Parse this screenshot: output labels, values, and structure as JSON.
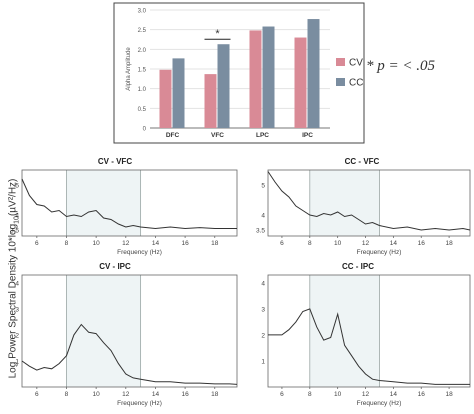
{
  "significance_note": "* p = < .05",
  "shared_ylabel": "Log Power Spectral Density 10*log10(µV²/Hz)",
  "chart_data": [
    {
      "type": "bar",
      "title": "",
      "xlabel": "",
      "ylabel": "Alpha Amplitude",
      "ylim": [
        0,
        3.0
      ],
      "yticks": [
        "0",
        "0.5",
        "1.0",
        "1.5",
        "2.0",
        "2.5",
        "3.0"
      ],
      "ytick_values": [
        0,
        0.5,
        1.0,
        1.5,
        2.0,
        2.5,
        3.0
      ],
      "grid": true,
      "legend": "right",
      "categories": [
        "DFC",
        "VFC",
        "LPC",
        "IPC"
      ],
      "series": [
        {
          "name": "CV",
          "color": "#d98a96",
          "values": [
            1.48,
            1.37,
            2.48,
            2.3
          ]
        },
        {
          "name": "CC",
          "color": "#7a8da0",
          "values": [
            1.77,
            2.13,
            2.58,
            2.77
          ]
        }
      ],
      "annotations": [
        {
          "text": "*",
          "category": "VFC"
        }
      ]
    },
    {
      "type": "line",
      "title": "CV - VFC",
      "xlabel": "Frequency (Hz)",
      "xlim": [
        5,
        19.5
      ],
      "ylim": [
        3.3,
        5.5
      ],
      "yticks": [
        "5",
        "4",
        "3.5"
      ],
      "ytick_values": [
        5,
        4,
        3.5
      ],
      "xticks": [
        6,
        8,
        10,
        12,
        14,
        16,
        18
      ],
      "shaded_band": [
        8,
        13
      ],
      "x": [
        5,
        5.5,
        6,
        6.5,
        7,
        7.5,
        8,
        8.5,
        9,
        9.5,
        10,
        10.5,
        11,
        11.5,
        12,
        12.5,
        13,
        14,
        15,
        16,
        17,
        18,
        19,
        19.5
      ],
      "y": [
        5.2,
        4.65,
        4.35,
        4.3,
        4.1,
        4.15,
        3.95,
        4.0,
        3.95,
        4.1,
        4.15,
        3.9,
        3.85,
        3.7,
        3.6,
        3.65,
        3.6,
        3.55,
        3.6,
        3.55,
        3.58,
        3.55,
        3.55,
        3.55
      ]
    },
    {
      "type": "line",
      "title": "CC - VFC",
      "xlabel": "Frequency (Hz)",
      "xlim": [
        5,
        19.5
      ],
      "ylim": [
        3.3,
        5.5
      ],
      "yticks": [
        "5",
        "4",
        "3.5"
      ],
      "ytick_values": [
        5,
        4,
        3.5
      ],
      "xticks": [
        6,
        8,
        10,
        12,
        14,
        16,
        18
      ],
      "shaded_band": [
        8,
        13
      ],
      "x": [
        5,
        5.5,
        6,
        6.5,
        7,
        7.5,
        8,
        8.5,
        9,
        9.5,
        10,
        10.5,
        11,
        11.5,
        12,
        12.5,
        13,
        14,
        15,
        16,
        17,
        18,
        19,
        19.5
      ],
      "y": [
        5.45,
        5.1,
        4.8,
        4.6,
        4.3,
        4.15,
        4.0,
        3.95,
        4.05,
        4.0,
        4.1,
        3.95,
        4.0,
        3.85,
        3.7,
        3.75,
        3.65,
        3.55,
        3.6,
        3.5,
        3.55,
        3.5,
        3.55,
        3.5
      ]
    },
    {
      "type": "line",
      "title": "CV - IPC",
      "xlabel": "Frequency (Hz)",
      "xlim": [
        5,
        19.5
      ],
      "ylim": [
        0,
        4.3
      ],
      "yticks": [
        "1",
        "2",
        "3",
        "4"
      ],
      "ytick_values": [
        1,
        2,
        3,
        4
      ],
      "xticks": [
        6,
        8,
        10,
        12,
        14,
        16,
        18
      ],
      "shaded_band": [
        8,
        13
      ],
      "x": [
        5,
        5.5,
        6,
        6.5,
        7,
        7.5,
        8,
        8.5,
        9,
        9.5,
        10,
        10.5,
        11,
        11.5,
        12,
        12.5,
        13,
        14,
        15,
        16,
        17,
        18,
        19,
        19.5
      ],
      "y": [
        1.0,
        0.8,
        0.65,
        0.75,
        0.7,
        0.9,
        1.2,
        2.0,
        2.4,
        2.1,
        2.05,
        1.7,
        1.4,
        0.9,
        0.5,
        0.35,
        0.3,
        0.2,
        0.2,
        0.15,
        0.15,
        0.12,
        0.12,
        0.1
      ]
    },
    {
      "type": "line",
      "title": "CC - IPC",
      "xlabel": "Frequency (Hz)",
      "xlim": [
        5,
        19.5
      ],
      "ylim": [
        0,
        4.3
      ],
      "yticks": [
        "1",
        "2",
        "3",
        "4"
      ],
      "ytick_values": [
        1,
        2,
        3,
        4
      ],
      "xticks": [
        6,
        8,
        10,
        12,
        14,
        16,
        18
      ],
      "shaded_band": [
        8,
        13
      ],
      "x": [
        5,
        5.5,
        6,
        6.5,
        7,
        7.5,
        8,
        8.5,
        9,
        9.5,
        10,
        10.5,
        11,
        11.5,
        12,
        12.5,
        13,
        14,
        15,
        16,
        17,
        18,
        19,
        19.5
      ],
      "y": [
        2.0,
        2.0,
        2.0,
        2.2,
        2.5,
        2.9,
        3.0,
        2.3,
        1.8,
        1.9,
        2.8,
        1.6,
        1.2,
        0.8,
        0.5,
        0.3,
        0.25,
        0.2,
        0.15,
        0.15,
        0.1,
        0.1,
        0.1,
        0.1
      ]
    }
  ]
}
